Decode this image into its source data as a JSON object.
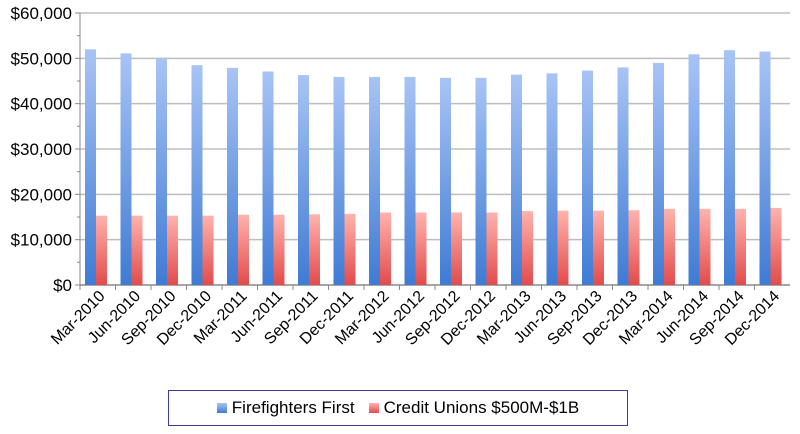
{
  "chart_data": {
    "type": "bar",
    "title": "",
    "xlabel": "",
    "ylabel": "",
    "ylim": [
      0,
      60000
    ],
    "yticks": [
      "$0",
      "$10,000",
      "$20,000",
      "$30,000",
      "$40,000",
      "$50,000",
      "$60,000"
    ],
    "grid": true,
    "legend_position": "bottom",
    "categories": [
      "Mar-2010",
      "Jun-2010",
      "Sep-2010",
      "Dec-2010",
      "Mar-2011",
      "Jun-2011",
      "Sep-2011",
      "Dec-2011",
      "Mar-2012",
      "Jun-2012",
      "Sep-2012",
      "Dec-2012",
      "Mar-2013",
      "Jun-2013",
      "Sep-2013",
      "Dec-2013",
      "Mar-2014",
      "Jun-2014",
      "Sep-2014",
      "Dec-2014"
    ],
    "series": [
      {
        "name": "Firefighters First",
        "color": "#5b8fd9",
        "values": [
          52000,
          51100,
          50000,
          48500,
          47900,
          47100,
          46300,
          45900,
          45900,
          45900,
          45700,
          45700,
          46400,
          46700,
          47300,
          48000,
          49000,
          50900,
          51800,
          51500
        ]
      },
      {
        "name": "Credit Unions $500M-$1B",
        "color": "#e86a6a",
        "values": [
          15300,
          15300,
          15300,
          15300,
          15500,
          15500,
          15600,
          15700,
          16000,
          16000,
          16000,
          16000,
          16300,
          16400,
          16400,
          16500,
          16800,
          16800,
          16800,
          17000
        ]
      }
    ]
  }
}
